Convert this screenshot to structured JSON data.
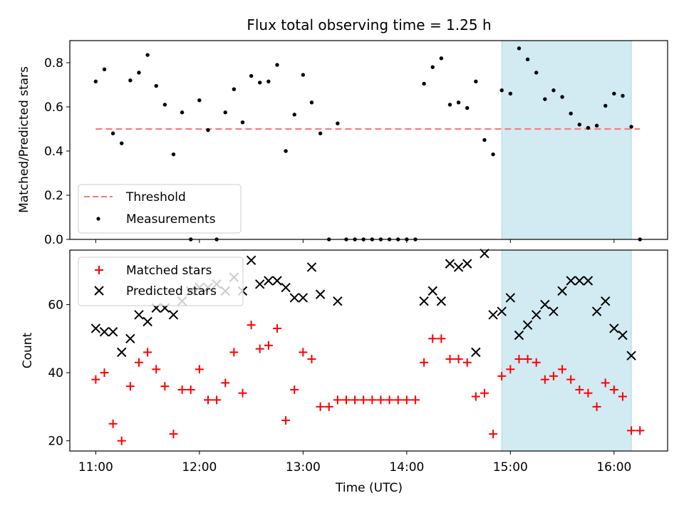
{
  "chart_data": {
    "type": "scatter",
    "title": "Flux total observing time = 1.25 h",
    "xlabel": "Time (UTC)",
    "xlim": [
      "10:45",
      "16:31"
    ],
    "x_ticks": [
      "11:00",
      "12:00",
      "13:00",
      "14:00",
      "15:00",
      "16:00"
    ],
    "highlight_span": [
      "14:55",
      "16:10"
    ],
    "highlight_color": "#add8e6",
    "top": {
      "ylabel": "Matched/Predicted stars",
      "ylim": [
        0,
        0.9
      ],
      "y_ticks": [
        "0.0",
        "0.2",
        "0.4",
        "0.6",
        "0.8"
      ],
      "threshold": {
        "name": "Threshold",
        "value": 0.5,
        "x_range": [
          "11:00",
          "16:15"
        ],
        "color": "#f08080"
      },
      "measurements": {
        "name": "Measurements",
        "color": "#000000",
        "x": [
          "11:00",
          "11:05",
          "11:10",
          "11:15",
          "11:20",
          "11:25",
          "11:30",
          "11:35",
          "11:40",
          "11:45",
          "11:50",
          "11:55",
          "12:00",
          "12:05",
          "12:10",
          "12:15",
          "12:20",
          "12:25",
          "12:30",
          "12:35",
          "12:40",
          "12:45",
          "12:50",
          "12:55",
          "13:00",
          "13:05",
          "13:10",
          "13:15",
          "13:20",
          "13:25",
          "13:30",
          "13:35",
          "13:40",
          "13:45",
          "13:50",
          "13:55",
          "14:00",
          "14:05",
          "14:10",
          "14:15",
          "14:20",
          "14:25",
          "14:30",
          "14:35",
          "14:40",
          "14:45",
          "14:50",
          "14:55",
          "15:00",
          "15:05",
          "15:10",
          "15:15",
          "15:20",
          "15:25",
          "15:30",
          "15:35",
          "15:40",
          "15:45",
          "15:50",
          "15:55",
          "16:00",
          "16:05",
          "16:10",
          "16:15"
        ],
        "y": [
          0.715,
          0.77,
          0.48,
          0.435,
          0.72,
          0.755,
          0.835,
          0.695,
          0.61,
          0.385,
          0.575,
          0.0,
          0.63,
          0.495,
          0.0,
          0.575,
          0.68,
          0.53,
          0.74,
          0.71,
          0.715,
          0.79,
          0.4,
          0.565,
          0.745,
          0.62,
          0.48,
          0.0,
          0.525,
          0.0,
          0.0,
          0.0,
          0.0,
          0.0,
          0.0,
          0.0,
          0.0,
          0.0,
          0.705,
          0.78,
          0.82,
          0.61,
          0.62,
          0.595,
          0.715,
          0.45,
          0.385,
          0.675,
          0.66,
          0.865,
          0.815,
          0.755,
          0.635,
          0.675,
          0.645,
          0.57,
          0.52,
          0.505,
          0.515,
          0.605,
          0.66,
          0.65,
          0.51,
          0.0
        ]
      }
    },
    "bottom": {
      "ylabel": "Count",
      "ylim": [
        17,
        76
      ],
      "y_ticks": [
        "20",
        "40",
        "60"
      ],
      "series": [
        {
          "name": "Matched stars",
          "marker": "plus",
          "color": "#ff0000",
          "x": [
            "11:00",
            "11:05",
            "11:10",
            "11:15",
            "11:20",
            "11:25",
            "11:30",
            "11:35",
            "11:40",
            "11:45",
            "11:50",
            "11:55",
            "12:00",
            "12:05",
            "12:10",
            "12:15",
            "12:20",
            "12:25",
            "12:30",
            "12:35",
            "12:40",
            "12:45",
            "12:50",
            "12:55",
            "13:00",
            "13:05",
            "13:10",
            "13:15",
            "13:20",
            "13:25",
            "13:30",
            "13:35",
            "13:40",
            "13:45",
            "13:50",
            "13:55",
            "14:00",
            "14:05",
            "14:10",
            "14:15",
            "14:20",
            "14:25",
            "14:30",
            "14:35",
            "14:40",
            "14:45",
            "14:50",
            "14:55",
            "15:00",
            "15:05",
            "15:10",
            "15:15",
            "15:20",
            "15:25",
            "15:30",
            "15:35",
            "15:40",
            "15:45",
            "15:50",
            "15:55",
            "16:00",
            "16:05",
            "16:10",
            "16:15"
          ],
          "y": [
            38,
            40,
            25,
            20,
            36,
            43,
            46,
            41,
            36,
            22,
            35,
            35,
            41,
            32,
            32,
            37,
            46,
            34,
            54,
            47,
            48,
            53,
            26,
            35,
            46,
            44,
            30,
            30,
            32,
            32,
            32,
            32,
            32,
            32,
            32,
            32,
            32,
            32,
            43,
            50,
            50,
            44,
            44,
            43,
            33,
            34,
            22,
            39,
            41,
            44,
            44,
            43,
            38,
            39,
            41,
            38,
            35,
            34,
            30,
            37,
            35,
            33,
            23,
            23
          ]
        },
        {
          "name": "Predicted stars",
          "marker": "x",
          "color": "#000000",
          "x": [
            "11:00",
            "11:05",
            "11:10",
            "11:15",
            "11:20",
            "11:25",
            "11:30",
            "11:35",
            "11:40",
            "11:45",
            "11:50",
            "11:55",
            "12:00",
            "12:05",
            "12:10",
            "12:15",
            "12:20",
            "12:25",
            "12:30",
            "12:35",
            "12:40",
            "12:45",
            "12:50",
            "12:55",
            "13:00",
            "13:05",
            "13:10",
            "13:20",
            "14:10",
            "14:15",
            "14:20",
            "14:25",
            "14:30",
            "14:35",
            "14:40",
            "14:45",
            "14:50",
            "14:55",
            "15:00",
            "15:05",
            "15:10",
            "15:15",
            "15:20",
            "15:25",
            "15:30",
            "15:35",
            "15:40",
            "15:45",
            "15:50",
            "15:55",
            "16:00",
            "16:05",
            "16:10"
          ],
          "y": [
            53,
            52,
            52,
            46,
            50,
            57,
            55,
            59,
            59,
            57,
            61,
            64,
            65,
            65,
            66,
            64,
            68,
            64,
            73,
            66,
            67,
            67,
            65,
            62,
            62,
            71,
            63,
            61,
            61,
            64,
            61,
            72,
            71,
            72,
            46,
            75,
            57,
            58,
            62,
            51,
            54,
            57,
            60,
            58,
            64,
            67,
            67,
            67,
            58,
            61,
            53,
            51,
            45
          ]
        }
      ]
    }
  }
}
